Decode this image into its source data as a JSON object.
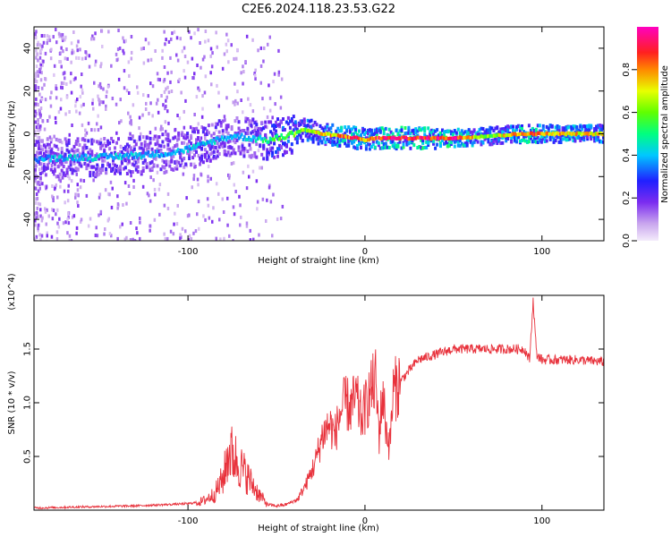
{
  "page_title": "C2E6.2024.118.23.53.G22",
  "chart_data": [
    {
      "type": "heatmap",
      "title": "C2E6.2024.118.23.53.G22",
      "xlabel": "Height of straight line (km)",
      "ylabel": "Frequency (Hz)",
      "xlim": [
        -187,
        135
      ],
      "ylim": [
        -50,
        50
      ],
      "xticks": [
        -100,
        0,
        100
      ],
      "yticks": [
        -40,
        -20,
        0,
        20,
        40
      ],
      "colorbar": {
        "label": "Normalized spectral amplitude",
        "range": [
          0,
          1
        ],
        "ticks": [
          "0.0",
          "0.2",
          "0.4",
          "0.6",
          "0.8"
        ],
        "colormap": "rainbow (purple → blue → cyan → green → yellow → red → magenta)"
      },
      "ridge": {
        "x": [
          -187,
          -170,
          -150,
          -130,
          -110,
          -95,
          -85,
          -75,
          -65,
          -55,
          -45,
          -35,
          -25,
          -15,
          -5,
          0,
          5,
          15,
          30,
          50,
          70,
          90,
          110,
          135
        ],
        "y": [
          -12,
          -11,
          -11,
          -10,
          -9,
          -6,
          -3,
          -1,
          -2,
          -3,
          -1,
          2,
          0,
          -1,
          -2,
          -3,
          -2,
          -2,
          -2,
          -2,
          -1,
          0,
          0,
          0
        ],
        "amplitude": [
          0.35,
          0.4,
          0.4,
          0.4,
          0.35,
          0.4,
          0.4,
          0.35,
          0.4,
          0.5,
          0.6,
          0.6,
          0.7,
          0.8,
          0.85,
          0.7,
          0.85,
          0.9,
          0.9,
          0.9,
          0.6,
          0.85,
          0.75,
          0.7
        ]
      }
    },
    {
      "type": "line",
      "xlabel": "Height of straight line (km)",
      "ylabel": "SNR (10 * v/v)",
      "yunit": "(x10^4)",
      "xlim": [
        -187,
        135
      ],
      "ylim": [
        0,
        2
      ],
      "xticks": [
        -100,
        0,
        100
      ],
      "yticks": [
        0.5,
        1.0,
        1.5
      ],
      "color": "#e8323c",
      "series": [
        {
          "x": [
            -187,
            -160,
            -130,
            -115,
            -100,
            -92,
            -85,
            -80,
            -77,
            -74,
            -70,
            -66,
            -60,
            -55,
            -50,
            -45,
            -38,
            -33,
            -28,
            -24,
            -20,
            -17,
            -14,
            -11,
            -8,
            -5,
            -2,
            0,
            3,
            6,
            8,
            10,
            12,
            14,
            16,
            20,
            25,
            30,
            40,
            50,
            60,
            70,
            80,
            90,
            93,
            95,
            97,
            100,
            110,
            120,
            135
          ],
          "y": [
            0.02,
            0.03,
            0.04,
            0.05,
            0.06,
            0.08,
            0.15,
            0.3,
            0.55,
            0.5,
            0.4,
            0.3,
            0.15,
            0.05,
            0.04,
            0.05,
            0.1,
            0.25,
            0.45,
            0.7,
            0.8,
            0.7,
            0.9,
            1.0,
            0.95,
            1.05,
            0.85,
            0.95,
            1.1,
            1.2,
            0.7,
            1.1,
            0.75,
            0.6,
            1.1,
            1.2,
            1.3,
            1.4,
            1.45,
            1.5,
            1.5,
            1.5,
            1.5,
            1.5,
            1.4,
            1.95,
            1.45,
            1.4,
            1.4,
            1.4,
            1.38
          ]
        }
      ]
    }
  ]
}
